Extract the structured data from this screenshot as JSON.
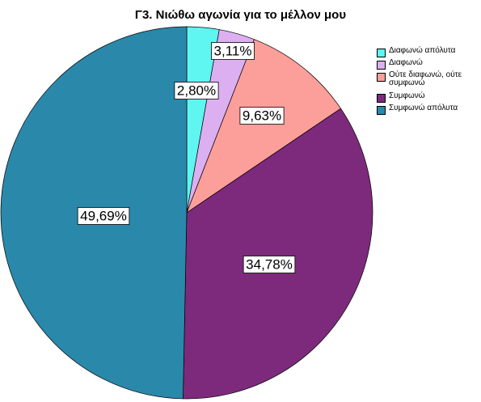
{
  "chart_data": {
    "type": "pie",
    "title": "Γ3. Νιώθω αγωνία για το μέλλον μου",
    "categories": [
      "Διαφωνώ απόλυτα",
      "Διαφωνώ",
      "Ούτε διαφωνώ, ούτε συμφωνώ",
      "Συμφωνώ",
      "Συμφωνώ απόλυτα"
    ],
    "values": [
      2.8,
      3.11,
      9.63,
      34.78,
      49.69
    ],
    "labels": [
      "2,80%",
      "3,11%",
      "9,63%",
      "34,78%",
      "49,69%"
    ],
    "colors": [
      "#5ff5f0",
      "#dcb0f0",
      "#fc9e9a",
      "#7d2a7c",
      "#2a88ab"
    ],
    "legend_position": "top-right"
  }
}
